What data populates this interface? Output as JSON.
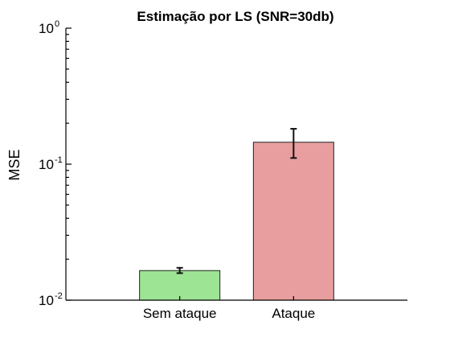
{
  "chart_data": {
    "type": "bar",
    "title": "Estimação por LS (SNR=30db)",
    "xlabel": "",
    "ylabel": "MSE",
    "yscale": "log",
    "ylim": [
      0.01,
      1
    ],
    "yticks": [
      {
        "value": 0.01,
        "base": "10",
        "exp": "-2"
      },
      {
        "value": 0.1,
        "base": "10",
        "exp": "-1"
      },
      {
        "value": 1,
        "base": "10",
        "exp": "0"
      }
    ],
    "categories": [
      "Sem ataque",
      "Ataque"
    ],
    "values": [
      0.0165,
      0.145
    ],
    "error_low": [
      0.0158,
      0.111
    ],
    "error_high": [
      0.0173,
      0.182
    ],
    "colors": [
      "#9de494",
      "#e89e9e"
    ],
    "grid": false,
    "legend": "none"
  }
}
